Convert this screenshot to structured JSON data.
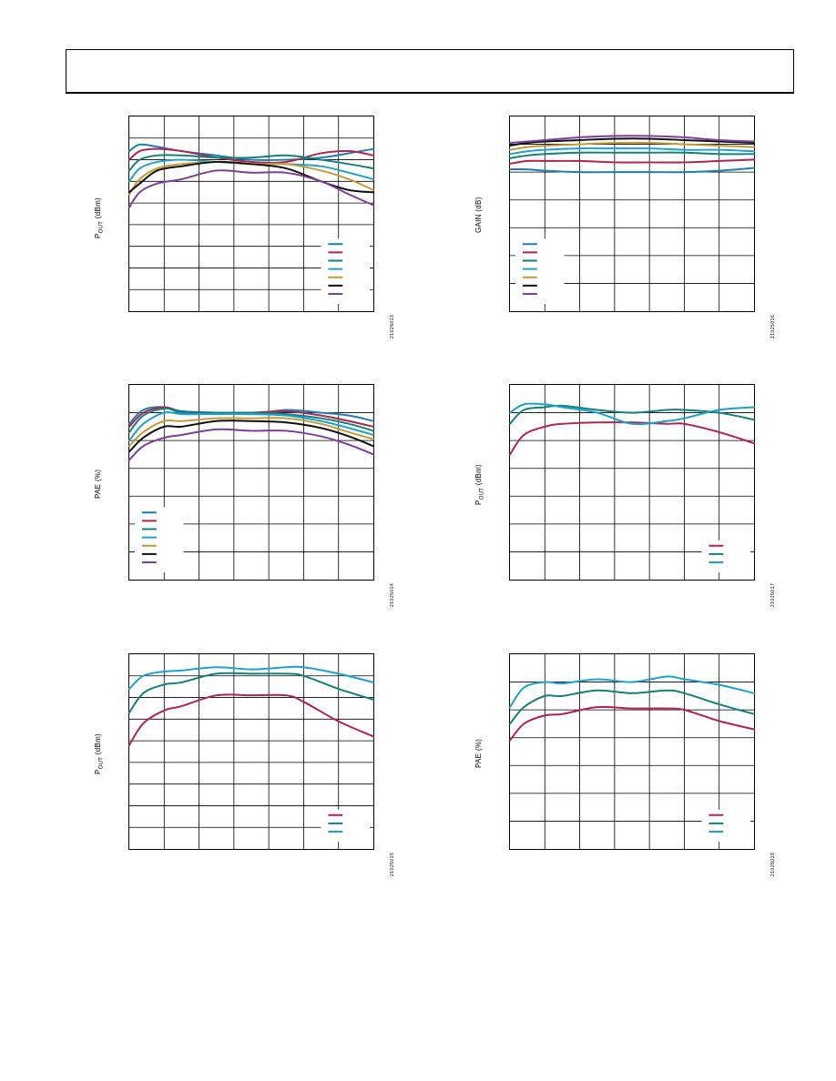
{
  "colors": {
    "blue": "#1a7fb5",
    "crimson": "#b0244f",
    "teal": "#13807a",
    "cyan": "#1aa3cc",
    "gold": "#c59a32",
    "black": "#111111",
    "purple": "#7b3f95"
  },
  "chart_data": [
    {
      "type": "line",
      "ylabel_main": "P",
      "ylabel_sub": "OUT",
      "ylabel_rest": " (dBm)",
      "figure_id": "21025013",
      "xlim": [
        0,
        7
      ],
      "ylim": [
        0,
        9
      ],
      "grid": true,
      "legend_position": "bottom-right",
      "series": [
        {
          "color": "blue",
          "x": [
            0,
            0.3,
            0.8,
            1.5,
            2.5,
            3.5,
            4.5,
            5.5,
            6.3,
            7
          ],
          "y": [
            7.4,
            7.7,
            7.6,
            7.4,
            7.2,
            7.0,
            7.0,
            7.1,
            7.3,
            7.5
          ]
        },
        {
          "color": "crimson",
          "x": [
            0,
            0.3,
            0.8,
            1.5,
            2.5,
            3.5,
            4.5,
            5.5,
            6.3,
            7
          ],
          "y": [
            7.0,
            7.4,
            7.5,
            7.4,
            7.1,
            6.9,
            6.9,
            7.3,
            7.4,
            7.2
          ]
        },
        {
          "color": "teal",
          "x": [
            0,
            0.3,
            0.8,
            1.5,
            2.5,
            3.5,
            4.5,
            5.5,
            6.3,
            7
          ],
          "y": [
            6.5,
            7.0,
            7.2,
            7.2,
            7.1,
            7.1,
            7.2,
            7.0,
            6.8,
            6.6
          ]
        },
        {
          "color": "cyan",
          "x": [
            0,
            0.3,
            0.8,
            1.5,
            2.5,
            3.5,
            4.5,
            5.5,
            6.3,
            7
          ],
          "y": [
            6.0,
            6.6,
            6.9,
            7.0,
            6.9,
            6.8,
            6.8,
            6.7,
            6.4,
            6.1
          ]
        },
        {
          "color": "gold",
          "x": [
            0,
            0.3,
            0.8,
            1.5,
            2.5,
            3.5,
            4.5,
            5.5,
            6.3,
            7
          ],
          "y": [
            5.4,
            6.1,
            6.6,
            6.8,
            6.9,
            6.8,
            6.8,
            6.5,
            6.1,
            5.6
          ]
        },
        {
          "color": "black",
          "x": [
            0,
            0.3,
            0.8,
            1.5,
            2.5,
            3.5,
            4.5,
            5.5,
            6.3,
            7
          ],
          "y": [
            5.5,
            5.9,
            6.5,
            6.7,
            6.9,
            6.8,
            6.6,
            6.0,
            5.6,
            5.5
          ]
        },
        {
          "color": "purple",
          "x": [
            0,
            0.3,
            0.8,
            1.5,
            2.5,
            3.5,
            4.5,
            5.5,
            6.3,
            7
          ],
          "y": [
            4.8,
            5.5,
            5.9,
            6.1,
            6.5,
            6.4,
            6.4,
            6.0,
            5.4,
            4.9
          ]
        }
      ]
    },
    {
      "type": "line",
      "ylabel_main": "GAIN",
      "ylabel_sub": "",
      "ylabel_rest": " (dB)",
      "figure_id": "21025016",
      "xlim": [
        0,
        7
      ],
      "ylim": [
        0,
        7
      ],
      "grid": true,
      "legend_position": "bottom-left",
      "series": [
        {
          "color": "blue",
          "x": [
            0,
            0.5,
            1,
            2,
            3,
            4,
            5,
            6,
            7
          ],
          "y": [
            5.1,
            5.1,
            5.05,
            5.0,
            5.0,
            5.0,
            5.0,
            5.05,
            5.15
          ]
        },
        {
          "color": "crimson",
          "x": [
            0,
            0.5,
            1,
            2,
            3,
            4,
            5,
            6,
            7
          ],
          "y": [
            5.3,
            5.4,
            5.4,
            5.4,
            5.35,
            5.35,
            5.35,
            5.4,
            5.45
          ]
        },
        {
          "color": "teal",
          "x": [
            0,
            0.5,
            1,
            2,
            3,
            4,
            5,
            6,
            7
          ],
          "y": [
            5.5,
            5.6,
            5.65,
            5.7,
            5.7,
            5.7,
            5.7,
            5.65,
            5.65
          ]
        },
        {
          "color": "cyan",
          "x": [
            0,
            0.5,
            1,
            2,
            3,
            4,
            5,
            6,
            7
          ],
          "y": [
            5.65,
            5.75,
            5.8,
            5.85,
            5.85,
            5.85,
            5.8,
            5.8,
            5.75
          ]
        },
        {
          "color": "gold",
          "x": [
            0,
            0.5,
            1,
            2,
            3,
            4,
            5,
            6,
            7
          ],
          "y": [
            5.8,
            5.9,
            5.95,
            6.0,
            6.05,
            6.05,
            6.0,
            5.95,
            5.9
          ]
        },
        {
          "color": "black",
          "x": [
            0,
            0.5,
            1,
            2,
            3,
            4,
            5,
            6,
            7
          ],
          "y": [
            5.95,
            6.05,
            6.1,
            6.15,
            6.2,
            6.2,
            6.15,
            6.1,
            6.05
          ]
        },
        {
          "color": "purple",
          "x": [
            0,
            0.5,
            1,
            2,
            3,
            4,
            5,
            6,
            7
          ],
          "y": [
            6.05,
            6.1,
            6.15,
            6.25,
            6.3,
            6.3,
            6.25,
            6.15,
            6.1
          ]
        }
      ]
    },
    {
      "type": "line",
      "ylabel_main": "PAE",
      "ylabel_sub": "",
      "ylabel_rest": " (%)",
      "figure_id": "21025014",
      "xlim": [
        0,
        7
      ],
      "ylim": [
        0,
        7
      ],
      "grid": true,
      "legend_position": "bottom-left",
      "series": [
        {
          "color": "blue",
          "x": [
            0,
            0.4,
            1,
            1.5,
            2.5,
            3.5,
            4.5,
            5.5,
            6.3,
            7
          ],
          "y": [
            5.6,
            6.1,
            6.2,
            6.0,
            6.0,
            5.95,
            6.1,
            6.0,
            5.9,
            5.7
          ]
        },
        {
          "color": "crimson",
          "x": [
            0,
            0.4,
            1,
            1.5,
            2.5,
            3.5,
            4.5,
            5.5,
            6.3,
            7
          ],
          "y": [
            5.5,
            6.0,
            6.2,
            6.05,
            6.0,
            6.0,
            6.05,
            5.9,
            5.7,
            5.5
          ]
        },
        {
          "color": "teal",
          "x": [
            0,
            0.4,
            1,
            1.5,
            2.5,
            3.5,
            4.5,
            5.5,
            6.3,
            7
          ],
          "y": [
            5.3,
            5.9,
            6.15,
            6.05,
            6.0,
            6.0,
            5.95,
            5.8,
            5.6,
            5.35
          ]
        },
        {
          "color": "cyan",
          "x": [
            0,
            0.4,
            1,
            1.5,
            2.5,
            3.5,
            4.5,
            5.5,
            6.3,
            7
          ],
          "y": [
            5.0,
            5.6,
            6.0,
            5.95,
            5.95,
            5.95,
            5.9,
            5.7,
            5.45,
            5.2
          ]
        },
        {
          "color": "gold",
          "x": [
            0,
            0.4,
            1,
            1.5,
            2.5,
            3.5,
            4.5,
            5.5,
            6.3,
            7
          ],
          "y": [
            4.8,
            5.3,
            5.7,
            5.7,
            5.8,
            5.8,
            5.8,
            5.6,
            5.3,
            5.05
          ]
        },
        {
          "color": "black",
          "x": [
            0,
            0.4,
            1,
            1.5,
            2.5,
            3.5,
            4.5,
            5.5,
            6.3,
            7
          ],
          "y": [
            4.6,
            5.1,
            5.5,
            5.5,
            5.7,
            5.7,
            5.65,
            5.45,
            5.15,
            4.8
          ]
        },
        {
          "color": "purple",
          "x": [
            0,
            0.4,
            1,
            1.5,
            2.5,
            3.5,
            4.5,
            5.5,
            6.3,
            7
          ],
          "y": [
            4.3,
            4.8,
            5.1,
            5.2,
            5.4,
            5.35,
            5.35,
            5.15,
            4.85,
            4.5
          ]
        }
      ]
    },
    {
      "type": "line",
      "ylabel_main": "P",
      "ylabel_sub": "OUT",
      "ylabel_rest": " (dBm)",
      "figure_id": "21025017",
      "xlim": [
        0,
        7
      ],
      "ylim": [
        0,
        7
      ],
      "grid": true,
      "legend_position": "bottom-right",
      "series": [
        {
          "color": "crimson",
          "x": [
            0,
            0.4,
            1,
            1.5,
            2.5,
            3.5,
            4.5,
            5,
            6,
            7
          ],
          "y": [
            4.5,
            5.2,
            5.5,
            5.6,
            5.65,
            5.65,
            5.6,
            5.6,
            5.3,
            4.9
          ]
        },
        {
          "color": "teal",
          "x": [
            0,
            0.4,
            1,
            1.5,
            2.5,
            3.5,
            4.5,
            5,
            6,
            7
          ],
          "y": [
            5.6,
            6.1,
            6.2,
            6.25,
            6.1,
            6.0,
            6.1,
            6.1,
            6.0,
            5.75
          ]
        },
        {
          "color": "cyan",
          "x": [
            0,
            0.4,
            1,
            1.5,
            2.5,
            3.5,
            4.5,
            5,
            6,
            7
          ],
          "y": [
            6.0,
            6.3,
            6.3,
            6.2,
            6.0,
            5.6,
            5.7,
            5.8,
            6.1,
            6.2
          ]
        }
      ]
    },
    {
      "type": "line",
      "ylabel_main": "P",
      "ylabel_sub": "OUT",
      "ylabel_rest": " (dBm)",
      "figure_id": "21025015",
      "xlim": [
        0,
        7
      ],
      "ylim": [
        0,
        9
      ],
      "grid": true,
      "legend_position": "bottom-right",
      "series": [
        {
          "color": "crimson",
          "x": [
            0,
            0.4,
            1,
            1.5,
            2.5,
            3.5,
            4.5,
            5,
            6,
            7
          ],
          "y": [
            4.8,
            5.8,
            6.4,
            6.6,
            7.1,
            7.1,
            7.1,
            6.8,
            5.9,
            5.2
          ]
        },
        {
          "color": "teal",
          "x": [
            0,
            0.4,
            1,
            1.5,
            2.5,
            3.5,
            4.5,
            5,
            6,
            7
          ],
          "y": [
            6.3,
            7.2,
            7.6,
            7.7,
            8.1,
            8.1,
            8.1,
            8.0,
            7.4,
            6.9
          ]
        },
        {
          "color": "cyan",
          "x": [
            0,
            0.4,
            1,
            1.5,
            2.5,
            3.5,
            4.5,
            5,
            6,
            7
          ],
          "y": [
            7.4,
            8.0,
            8.2,
            8.25,
            8.4,
            8.3,
            8.4,
            8.4,
            8.1,
            7.7
          ]
        }
      ]
    },
    {
      "type": "line",
      "ylabel_main": "PAE",
      "ylabel_sub": "",
      "ylabel_rest": " (%)",
      "figure_id": "21025018",
      "xlim": [
        0,
        7
      ],
      "ylim": [
        0,
        7
      ],
      "grid": true,
      "legend_position": "bottom-right",
      "series": [
        {
          "color": "crimson",
          "x": [
            0,
            0.4,
            1,
            1.5,
            2.5,
            3.5,
            4.5,
            5,
            6,
            7
          ],
          "y": [
            3.9,
            4.5,
            4.8,
            4.85,
            5.1,
            5.05,
            5.05,
            5.0,
            4.6,
            4.3
          ]
        },
        {
          "color": "teal",
          "x": [
            0,
            0.4,
            1,
            1.5,
            2.5,
            3.5,
            4.5,
            5,
            6,
            7
          ],
          "y": [
            4.5,
            5.1,
            5.5,
            5.5,
            5.7,
            5.6,
            5.7,
            5.6,
            5.2,
            4.85
          ]
        },
        {
          "color": "cyan",
          "x": [
            0,
            0.4,
            1,
            1.5,
            2.5,
            3.5,
            4.5,
            5,
            6,
            7
          ],
          "y": [
            5.1,
            5.8,
            6.0,
            5.95,
            6.1,
            6.0,
            6.2,
            6.1,
            5.9,
            5.6
          ]
        }
      ]
    }
  ]
}
